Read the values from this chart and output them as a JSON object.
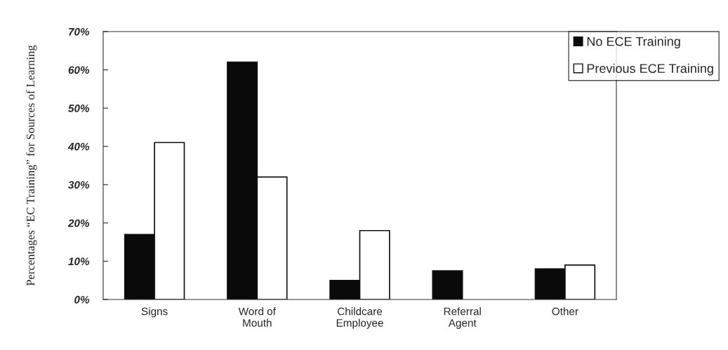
{
  "chart_data": {
    "type": "bar",
    "ylabel": "Percentages “EC Training” for Sources of Learning",
    "categories": [
      "Signs",
      "Word of\nMouth",
      "Childcare\nEmployee",
      "Referral\nAgent",
      "Other"
    ],
    "series": [
      {
        "name": "No ECE Training",
        "color": "#0a0a0a",
        "values": [
          17,
          62,
          5,
          7.5,
          8
        ]
      },
      {
        "name": "Previous ECE Training",
        "color": "#ffffff",
        "values": [
          41,
          32,
          18,
          null,
          9
        ]
      }
    ],
    "ylim": [
      0,
      70
    ],
    "yticks": [
      {
        "value": 0,
        "label": "0%"
      },
      {
        "value": 10,
        "label": "10%"
      },
      {
        "value": 20,
        "label": "20%"
      },
      {
        "value": 30,
        "label": "30%"
      },
      {
        "value": 40,
        "label": "40%"
      },
      {
        "value": 50,
        "label": "50%"
      },
      {
        "value": 60,
        "label": "60%"
      },
      {
        "value": 70,
        "label": "70%"
      }
    ],
    "grid": false,
    "legend": "top right"
  }
}
